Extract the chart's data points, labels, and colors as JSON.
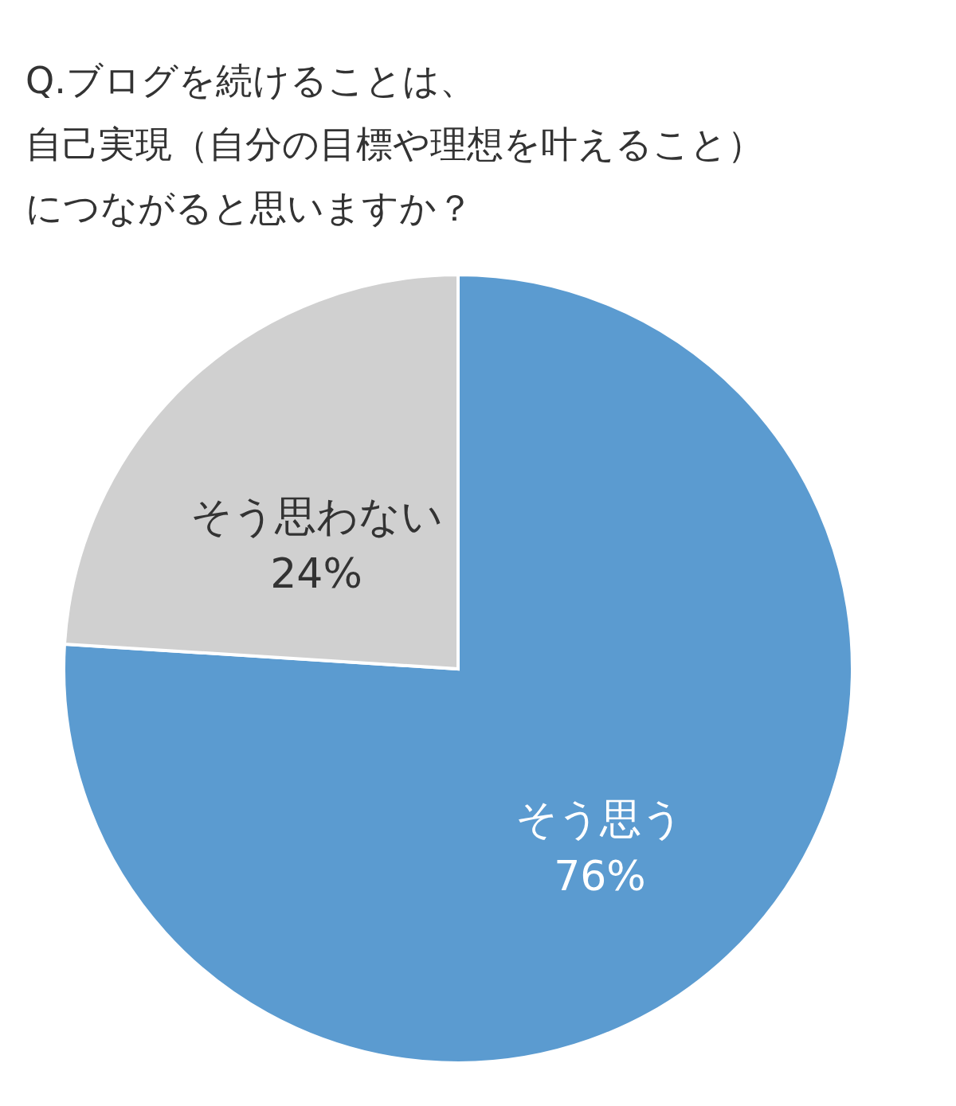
{
  "chart_data": {
    "type": "pie",
    "title": "Q.ブログを続けることは、自己実現（自分の目標や理想を叶えること）につながると思いますか？",
    "categories": [
      "そう思う",
      "そう思わない"
    ],
    "values": [
      76,
      24
    ],
    "colors": [
      "#5b9bd0",
      "#d0d0d0"
    ],
    "value_labels": [
      "76%",
      "24%"
    ],
    "legend": false
  }
}
